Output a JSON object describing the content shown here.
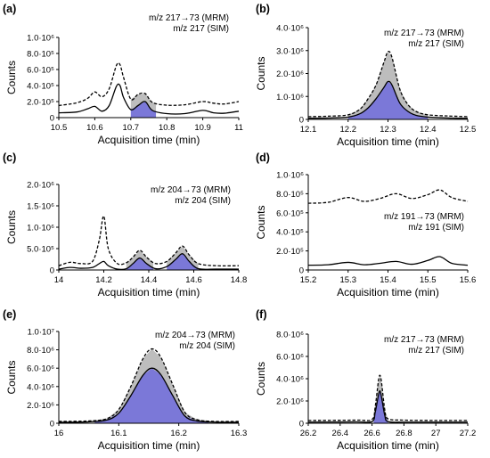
{
  "figure": {
    "xlabel": "Acquisition time (min)",
    "ylabel": "Counts"
  },
  "chart_data": [
    {
      "panel": "(a)",
      "type": "line",
      "legend": [
        "m/z 217→73 (MRM)",
        "m/z 217 (SIM)"
      ],
      "xlim": [
        10.5,
        11
      ],
      "xticks": [
        "10.5",
        "10.6",
        "10.7",
        "10.8",
        "10.9",
        "11"
      ],
      "ylim": [
        0,
        1000000
      ],
      "yticks": [
        "0",
        "2.0·10⁵",
        "4.0·10⁵",
        "6.0·10⁵",
        "8.0·10⁵",
        "1.0·10⁶"
      ],
      "series": [
        {
          "style": "dashed",
          "x": [
            10.5,
            10.55,
            10.58,
            10.6,
            10.62,
            10.64,
            10.66,
            10.67,
            10.68,
            10.7,
            10.72,
            10.74,
            10.76,
            10.8,
            10.85,
            10.9,
            10.93,
            10.96,
            11.0
          ],
          "y": [
            150000,
            185000,
            240000,
            320000,
            260000,
            360000,
            650000,
            660000,
            500000,
            230000,
            290000,
            300000,
            190000,
            155000,
            160000,
            200000,
            180000,
            170000,
            200000
          ]
        },
        {
          "style": "solid",
          "x": [
            10.5,
            10.55,
            10.58,
            10.6,
            10.62,
            10.64,
            10.66,
            10.67,
            10.68,
            10.7,
            10.72,
            10.74,
            10.76,
            10.8,
            10.85,
            10.9,
            10.93,
            10.96,
            11.0
          ],
          "y": [
            60000,
            70000,
            110000,
            140000,
            80000,
            150000,
            390000,
            400000,
            250000,
            100000,
            150000,
            200000,
            90000,
            50000,
            50000,
            90000,
            60000,
            55000,
            80000
          ]
        }
      ],
      "shaded_range": [
        10.7,
        10.77
      ]
    },
    {
      "panel": "(b)",
      "type": "line",
      "legend": [
        "m/z 217→73 (MRM)",
        "m/z 217 (SIM)"
      ],
      "xlim": [
        12.1,
        12.5
      ],
      "xticks": [
        "12.1",
        "12.2",
        "12.3",
        "12.4",
        "12.5"
      ],
      "ylim": [
        0,
        4000000
      ],
      "yticks": [
        "0",
        "1.0·10⁶",
        "2.0·10⁶",
        "3.0·10⁶",
        "4.0·10⁶"
      ],
      "series": [
        {
          "style": "dashed",
          "x": [
            12.1,
            12.15,
            12.2,
            12.23,
            12.25,
            12.27,
            12.29,
            12.3,
            12.31,
            12.33,
            12.35,
            12.37,
            12.4,
            12.45,
            12.5
          ],
          "y": [
            120000,
            140000,
            200000,
            450000,
            900000,
            1500000,
            2500000,
            2950000,
            2700000,
            1300000,
            650000,
            350000,
            200000,
            150000,
            120000
          ]
        },
        {
          "style": "solid",
          "x": [
            12.1,
            12.15,
            12.2,
            12.23,
            12.25,
            12.27,
            12.29,
            12.3,
            12.31,
            12.33,
            12.35,
            12.37,
            12.4,
            12.45,
            12.5
          ],
          "y": [
            50000,
            60000,
            100000,
            250000,
            500000,
            900000,
            1400000,
            1650000,
            1500000,
            700000,
            350000,
            180000,
            100000,
            60000,
            50000
          ]
        }
      ],
      "shaded_range": [
        12.2,
        12.4
      ]
    },
    {
      "panel": "(c)",
      "type": "line",
      "legend": [
        "m/z 204→73 (MRM)",
        "m/z 204 (SIM)"
      ],
      "xlim": [
        14,
        14.8
      ],
      "xticks": [
        "14",
        "14.2",
        "14.4",
        "14.6",
        "14.8"
      ],
      "ylim": [
        0,
        2000000
      ],
      "yticks": [
        "0",
        "5.0·10⁵",
        "1.0·10⁶",
        "1.5·10⁶",
        "2.0·10⁶"
      ],
      "series": [
        {
          "style": "dashed",
          "x": [
            14.0,
            14.05,
            14.1,
            14.15,
            14.18,
            14.2,
            14.22,
            14.26,
            14.3,
            14.33,
            14.36,
            14.39,
            14.43,
            14.48,
            14.52,
            14.55,
            14.58,
            14.62,
            14.7,
            14.8
          ],
          "y": [
            100000,
            180000,
            150000,
            200000,
            700000,
            1260000,
            500000,
            150000,
            170000,
            300000,
            460000,
            300000,
            150000,
            200000,
            400000,
            560000,
            350000,
            150000,
            100000,
            100000
          ]
        },
        {
          "style": "solid",
          "x": [
            14.0,
            14.05,
            14.1,
            14.15,
            14.18,
            14.2,
            14.22,
            14.26,
            14.3,
            14.33,
            14.36,
            14.39,
            14.43,
            14.48,
            14.52,
            14.55,
            14.58,
            14.62,
            14.7,
            14.8
          ],
          "y": [
            20000,
            60000,
            40000,
            60000,
            150000,
            200000,
            100000,
            20000,
            30000,
            150000,
            280000,
            150000,
            30000,
            80000,
            250000,
            380000,
            200000,
            30000,
            20000,
            20000
          ]
        }
      ],
      "shaded_ranges": [
        [
          14.3,
          14.42
        ],
        [
          14.48,
          14.62
        ]
      ]
    },
    {
      "panel": "(d)",
      "type": "line",
      "legend": [
        "m/z 191→73 (MRM)",
        "m/z 191 (SIM)"
      ],
      "xlim": [
        15.2,
        15.6
      ],
      "xticks": [
        "15.2",
        "15.3",
        "15.4",
        "15.5",
        "15.6"
      ],
      "ylim": [
        0,
        1000000
      ],
      "yticks": [
        "0",
        "2.0·10⁵",
        "4.0·10⁵",
        "6.0·10⁵",
        "8.0·10⁵",
        "1.0·10⁶"
      ],
      "series": [
        {
          "style": "dashed",
          "x": [
            15.2,
            15.25,
            15.3,
            15.34,
            15.38,
            15.42,
            15.46,
            15.5,
            15.53,
            15.56,
            15.6
          ],
          "y": [
            700000,
            710000,
            760000,
            720000,
            750000,
            800000,
            750000,
            790000,
            840000,
            760000,
            720000
          ]
        },
        {
          "style": "solid",
          "x": [
            15.2,
            15.25,
            15.3,
            15.34,
            15.38,
            15.42,
            15.46,
            15.5,
            15.53,
            15.56,
            15.6
          ],
          "y": [
            50000,
            55000,
            80000,
            55000,
            70000,
            90000,
            60000,
            100000,
            140000,
            70000,
            50000
          ]
        }
      ]
    },
    {
      "panel": "(e)",
      "type": "line",
      "legend": [
        "m/z 204→73 (MRM)",
        "m/z 204 (SIM)"
      ],
      "xlim": [
        16,
        16.3
      ],
      "xticks": [
        "16",
        "16.1",
        "16.2",
        "16.3"
      ],
      "ylim": [
        0,
        10000000
      ],
      "yticks": [
        "0",
        "2.0·10⁶",
        "4.0·10⁶",
        "6.0·10⁶",
        "8.0·10⁶",
        "1.0·10⁷"
      ],
      "series": [
        {
          "style": "dashed",
          "x": [
            16.0,
            16.05,
            16.08,
            16.1,
            16.12,
            16.14,
            16.155,
            16.17,
            16.19,
            16.21,
            16.23,
            16.26,
            16.3
          ],
          "y": [
            200000,
            250000,
            500000,
            1500000,
            4000000,
            7000000,
            8100000,
            7200000,
            4200000,
            1200000,
            400000,
            200000,
            200000
          ]
        },
        {
          "style": "solid",
          "x": [
            16.0,
            16.05,
            16.08,
            16.1,
            16.12,
            16.14,
            16.155,
            16.17,
            16.19,
            16.21,
            16.23,
            16.26,
            16.3
          ],
          "y": [
            100000,
            150000,
            350000,
            1100000,
            3000000,
            5200000,
            6000000,
            5300000,
            3000000,
            800000,
            250000,
            120000,
            100000
          ]
        }
      ],
      "shaded_range": [
        16.06,
        16.25
      ]
    },
    {
      "panel": "(f)",
      "type": "line",
      "legend": [
        "m/z 217→73 (MRM)",
        "m/z 217 (SIM)"
      ],
      "xlim": [
        26.2,
        27.2
      ],
      "xticks": [
        "26.2",
        "26.4",
        "26.6",
        "26.8",
        "27",
        "27.2"
      ],
      "ylim": [
        0,
        8000000
      ],
      "yticks": [
        "0",
        "2.0·10⁶",
        "4.0·10⁶",
        "6.0·10⁶",
        "8.0·10⁶"
      ],
      "series": [
        {
          "style": "dashed",
          "x": [
            26.2,
            26.5,
            26.6,
            26.62,
            26.64,
            26.65,
            26.66,
            26.68,
            26.7,
            26.8,
            27.0,
            27.2
          ],
          "y": [
            250000,
            280000,
            350000,
            1500000,
            3800000,
            4300000,
            3600000,
            1200000,
            400000,
            280000,
            250000,
            250000
          ]
        },
        {
          "style": "solid",
          "x": [
            26.2,
            26.5,
            26.6,
            26.62,
            26.64,
            26.65,
            26.66,
            26.68,
            26.7,
            26.8,
            27.0,
            27.2
          ],
          "y": [
            100000,
            120000,
            150000,
            1000000,
            2500000,
            2900000,
            2300000,
            700000,
            150000,
            100000,
            100000,
            100000
          ]
        }
      ],
      "shaded_range": [
        26.61,
        26.7
      ]
    }
  ],
  "colors": {
    "mrm_fill": "#7b78d8",
    "sim_fill": "#bdbdbd",
    "line": "#000000"
  }
}
